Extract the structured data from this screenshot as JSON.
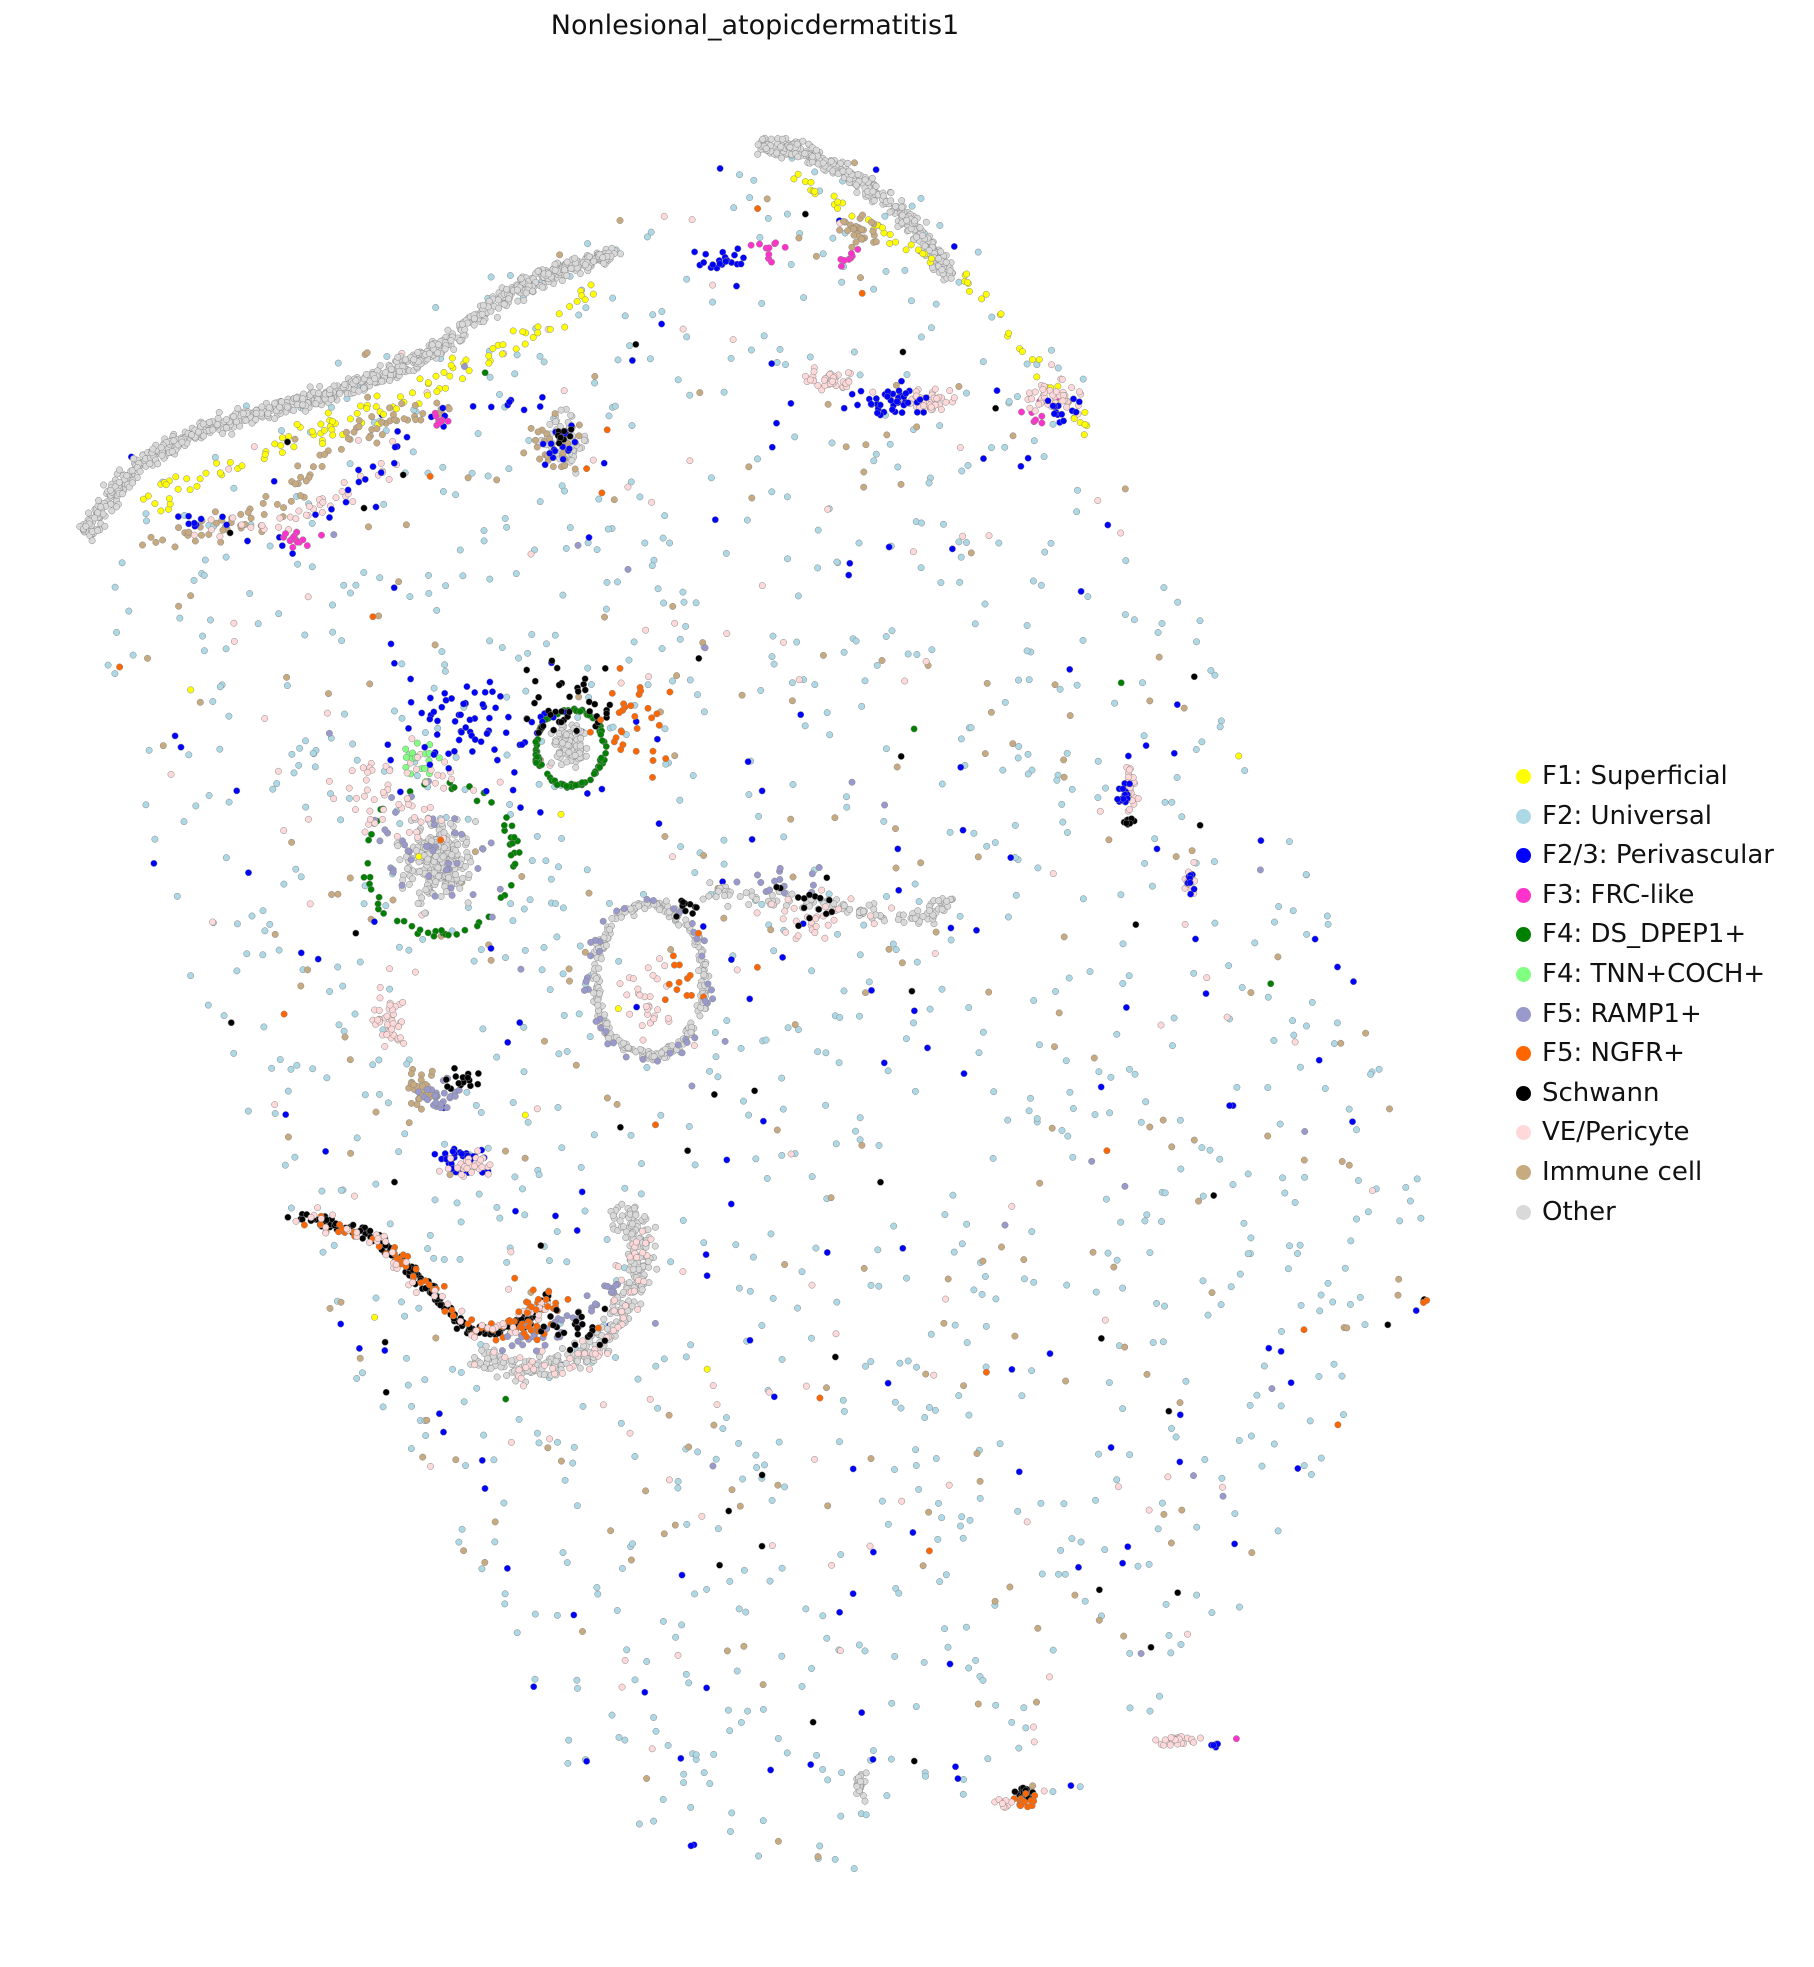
{
  "chart_data": {
    "type": "scatter",
    "title": "Nonlesional_atopicdermatitis1",
    "xlabel": "",
    "ylabel": "",
    "axes_visible": false,
    "grid": false,
    "legend_position": "right",
    "categories": [
      {
        "name": "F1: Superficial",
        "color": "#ffff00"
      },
      {
        "name": "F2: Universal",
        "color": "#add8e6"
      },
      {
        "name": "F2/3: Perivascular",
        "color": "#0000ff"
      },
      {
        "name": "F3: FRC-like",
        "color": "#ff33cc"
      },
      {
        "name": "F4: DS_DPEP1+",
        "color": "#008000"
      },
      {
        "name": "F4: TNN+COCH+",
        "color": "#80ff80"
      },
      {
        "name": "F5: RAMP1+",
        "color": "#9999cc"
      },
      {
        "name": "F5: NGFR+",
        "color": "#ff6600"
      },
      {
        "name": "Schwann",
        "color": "#000000"
      },
      {
        "name": "VE/Pericyte",
        "color": "#ffd9d9"
      },
      {
        "name": "Immune cell",
        "color": "#c8aa80"
      },
      {
        "name": "Other",
        "color": "#d9d9d9"
      }
    ],
    "point_outline_color": "#888888",
    "note_on_points": "Individual spatial cell coordinates are not printed in the image; point cloud is approximated per category from visible clusters."
  }
}
